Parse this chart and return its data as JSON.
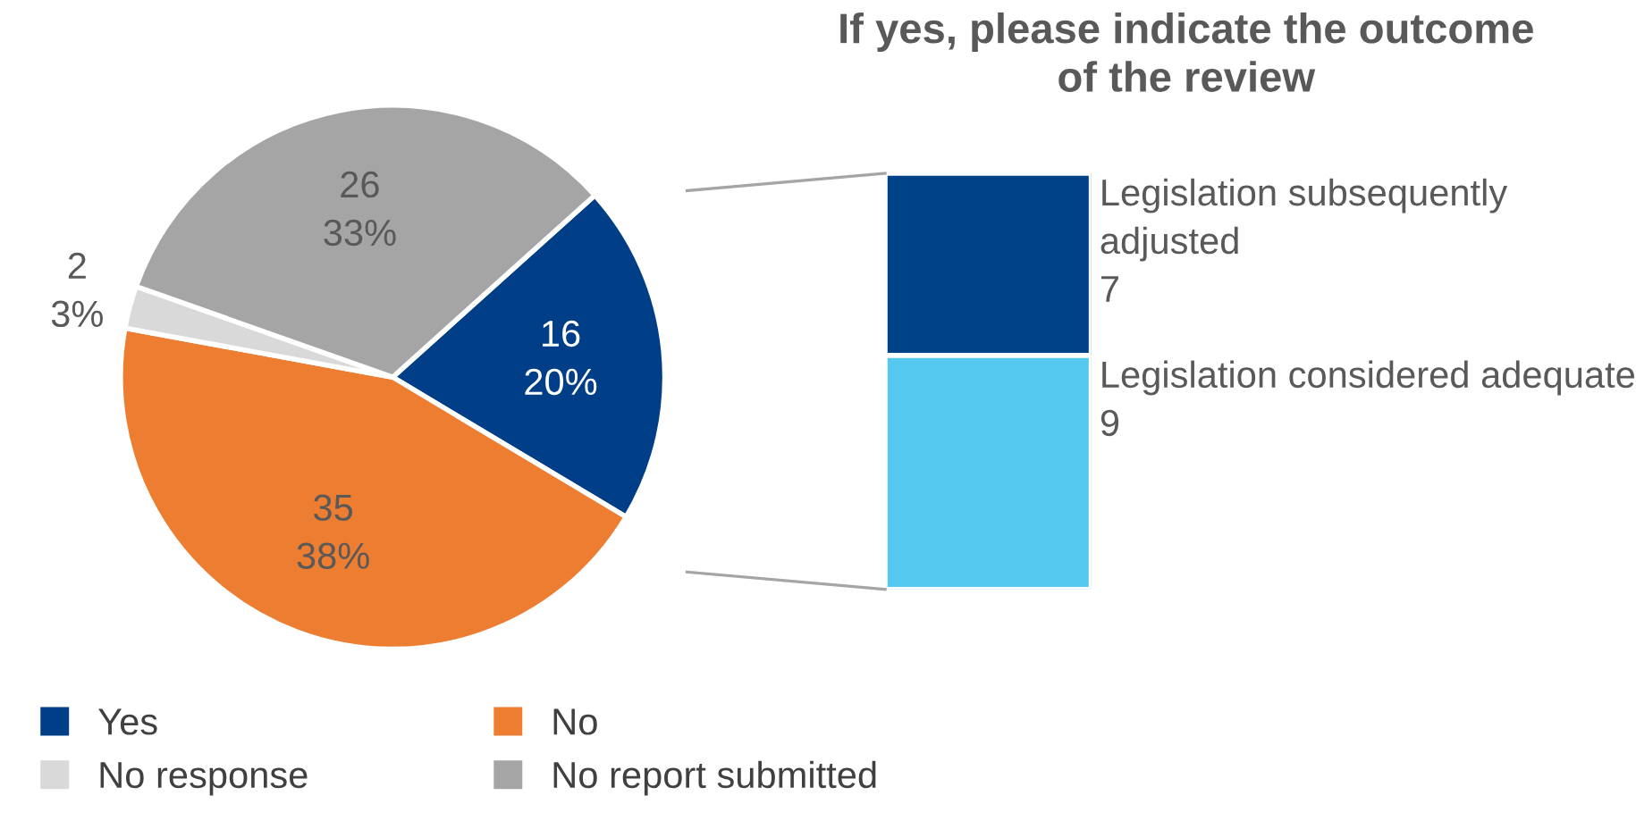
{
  "chart_data": [
    {
      "type": "pie",
      "categories": [
        "Yes",
        "No",
        "No response",
        "No report submitted"
      ],
      "values": [
        16,
        35,
        2,
        26
      ],
      "colors": [
        "#003f88",
        "#ed7d31",
        "#d9d9d9",
        "#a5a5a5"
      ],
      "value_labels": [
        "16\n20%",
        "35\n38%",
        "2\n3%",
        "26\n33%"
      ],
      "legend": "bottom"
    },
    {
      "type": "bar",
      "stacked": true,
      "title": "If yes, please indicate the outcome\nof the review",
      "categories": [
        null
      ],
      "series": [
        {
          "name": "Legislation considered adequate",
          "color": "#55c8f0",
          "values": [
            9
          ]
        },
        {
          "name": "Legislation subsequently adjusted",
          "color": "#004287",
          "values": [
            7
          ]
        }
      ],
      "data_labels": true
    }
  ]
}
